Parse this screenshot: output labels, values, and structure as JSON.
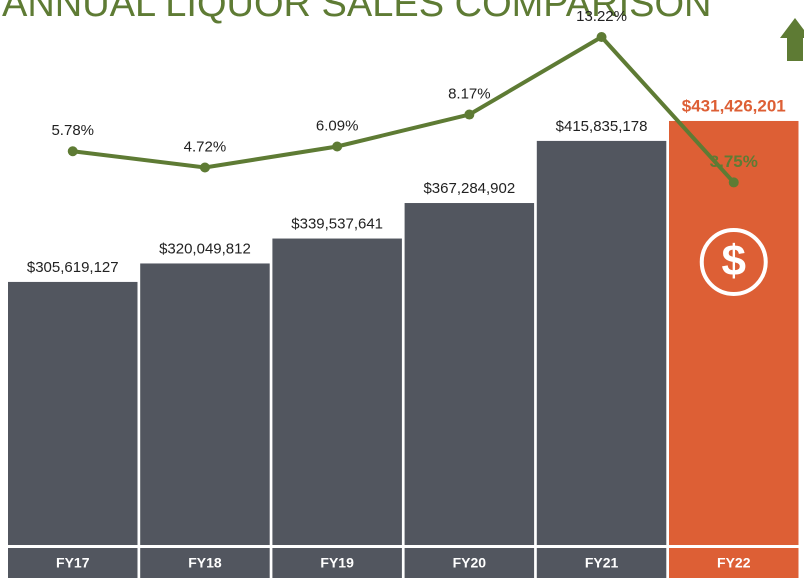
{
  "chart_data": {
    "type": "bar",
    "title": "ANNUAL LIQUOR SALES COMPARISON",
    "categories": [
      "FY17",
      "FY18",
      "FY19",
      "FY20",
      "FY21",
      "FY22"
    ],
    "series": [
      {
        "type": "bar",
        "values": [
          305619127,
          320049812,
          339537641,
          367284902,
          415835178,
          431426201
        ],
        "value_labels": [
          "$305,619,127",
          "$320,049,812",
          "$339,537,641",
          "$367,284,902",
          "$415,835,178",
          "$431,426,201"
        ],
        "colors": [
          "#52565f",
          "#52565f",
          "#52565f",
          "#52565f",
          "#52565f",
          "#dd5f35"
        ]
      },
      {
        "type": "line",
        "axis": "y2",
        "values": [
          5.78,
          4.72,
          6.09,
          8.17,
          13.22,
          3.75
        ],
        "value_labels": [
          "5.78%",
          "4.72%",
          "6.09%",
          "8.17%",
          "13.22%",
          "3.75%"
        ],
        "color": "#5e7b34"
      }
    ],
    "ylim": [
      100000000,
      440000000
    ],
    "y2lim": [
      0,
      14
    ]
  }
}
